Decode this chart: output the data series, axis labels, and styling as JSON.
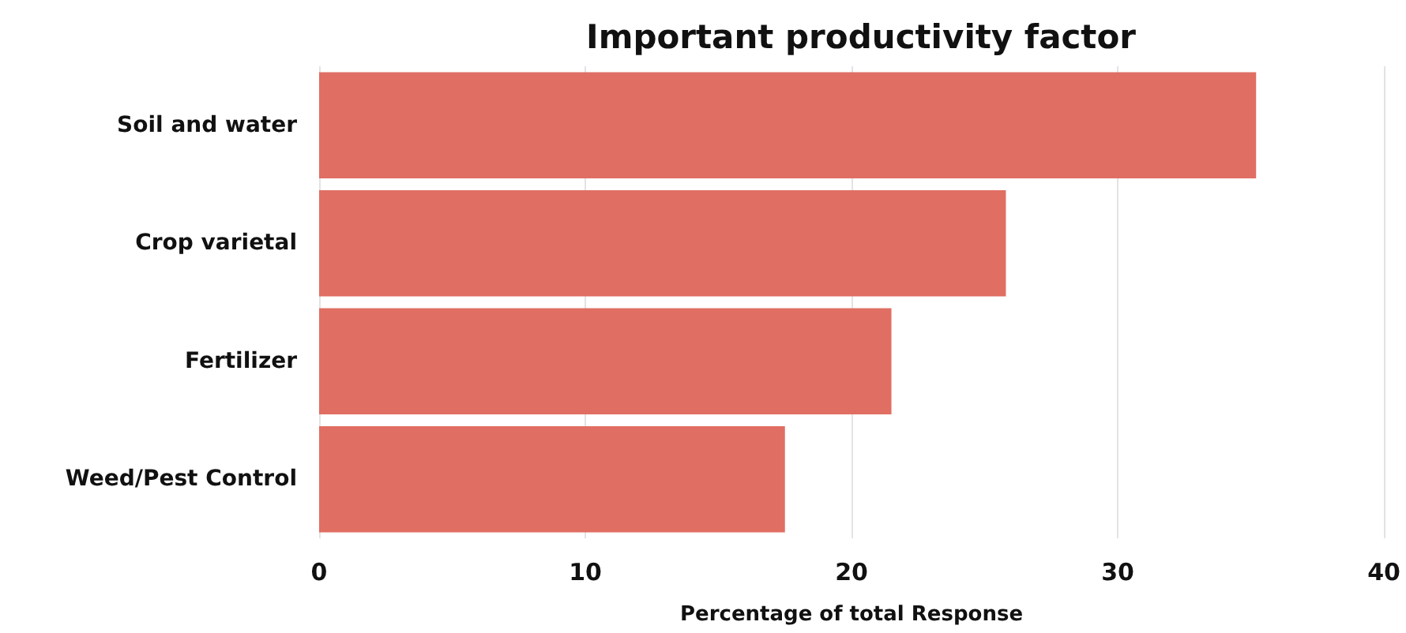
{
  "chart_data": {
    "type": "bar",
    "orientation": "horizontal",
    "title": "Important productivity factor",
    "xlabel": "Percentage of total Response",
    "categories": [
      "Soil and water",
      "Crop varietal",
      "Fertilizer",
      "Weed/Pest Control"
    ],
    "values": [
      35.2,
      25.8,
      21.5,
      17.5
    ],
    "color": "#e06e63",
    "xlim": [
      0,
      40
    ],
    "xticks": [
      0,
      10,
      20,
      30,
      40
    ],
    "grid": "x"
  }
}
